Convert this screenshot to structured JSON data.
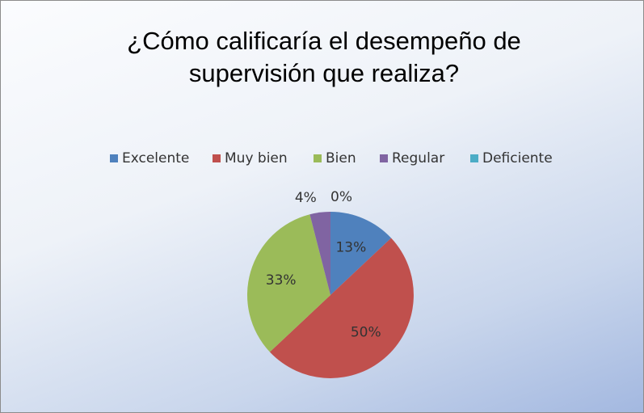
{
  "chart_data": {
    "type": "pie",
    "title": "¿Cómo calificaría el desempeño de supervisión que realiza?",
    "categories": [
      "Excelente",
      "Muy bien",
      "Bien",
      "Regular",
      "Deficiente"
    ],
    "values": [
      13,
      50,
      33,
      4,
      0
    ],
    "value_labels": [
      "13%",
      "50%",
      "33%",
      "4%",
      "0%"
    ],
    "colors": [
      "#4f81bd",
      "#c0504d",
      "#9bbb59",
      "#8064a2",
      "#4bacc6"
    ],
    "legend": "top"
  }
}
